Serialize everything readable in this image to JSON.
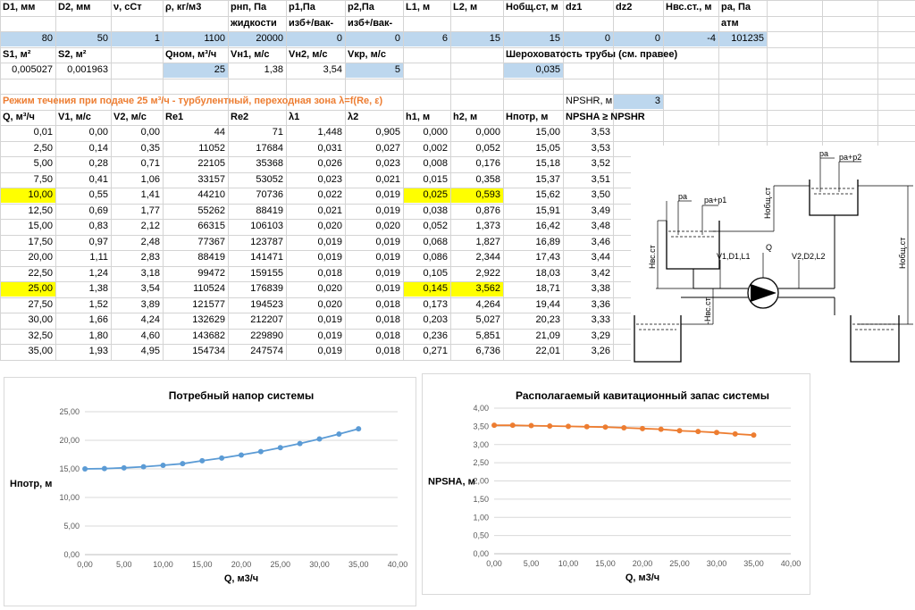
{
  "header_row1": [
    {
      "col": 0,
      "text": "D1, мм"
    },
    {
      "col": 1,
      "text": "D2, мм"
    },
    {
      "col": 2,
      "text": "ν, сСт"
    },
    {
      "col": 3,
      "text": "ρ, кг/м3"
    },
    {
      "col": 4,
      "text": "рнп, Па"
    },
    {
      "col": 5,
      "text": "р1,Па"
    },
    {
      "col": 6,
      "text": "р2,Па"
    },
    {
      "col": 7,
      "text": "L1, м"
    },
    {
      "col": 8,
      "text": "L2, м"
    },
    {
      "col": 9,
      "text": "Нобщ.ст, м"
    },
    {
      "col": 10,
      "text": "dz1"
    },
    {
      "col": 11,
      "text": "dz2"
    },
    {
      "col": 12,
      "text": "Нвс.ст., м"
    },
    {
      "col": 13,
      "text": "ра, Па"
    }
  ],
  "header_row2": [
    {
      "col": 4,
      "text": "жидкости"
    },
    {
      "col": 5,
      "text": "изб+/вак-"
    },
    {
      "col": 6,
      "text": "изб+/вак-"
    },
    {
      "col": 13,
      "text": "атм"
    }
  ],
  "input_values": [
    "80",
    "50",
    "1",
    "1100",
    "20000",
    "0",
    "0",
    "6",
    "15",
    "15",
    "0",
    "0",
    "-4",
    "101235"
  ],
  "row3": {
    "s1_label": "S1, м²",
    "s2_label": "S2, м²",
    "qnom_label": "Qном, м³/ч",
    "vn1_label": "Vн1, м/с",
    "vn2_label": "Vн2, м/с",
    "vkr_label": "Vкр, м/с",
    "roughness_label": "Шероховатость трубы (см. правее)"
  },
  "row4": {
    "s1": "0,005027",
    "s2": "0,001963",
    "qnom": "25",
    "vn1": "1,38",
    "vn2": "3,54",
    "vkr": "5",
    "roughness": "0,035"
  },
  "regime_text": "Режим течения при подаче 25 м³/ч - турбулентный, переходная зона  λ=f(Re, ε)",
  "npshr_label": "NPSHR, м",
  "npshr_value": "3",
  "table_headers": [
    "Q, м³/ч",
    "V1, м/с",
    "V2, м/с",
    "Re1",
    "Re2",
    "λ1",
    "λ2",
    "h1, м",
    "h2, м",
    "Нпотр, м",
    "NPSHA ≥ NPSHR"
  ],
  "table_rows": [
    [
      "0,01",
      "0,00",
      "0,00",
      "44",
      "71",
      "1,448",
      "0,905",
      "0,000",
      "0,000",
      "15,00",
      "3,53"
    ],
    [
      "2,50",
      "0,14",
      "0,35",
      "11052",
      "17684",
      "0,031",
      "0,027",
      "0,002",
      "0,052",
      "15,05",
      "3,53"
    ],
    [
      "5,00",
      "0,28",
      "0,71",
      "22105",
      "35368",
      "0,026",
      "0,023",
      "0,008",
      "0,176",
      "15,18",
      "3,52"
    ],
    [
      "7,50",
      "0,41",
      "1,06",
      "33157",
      "53052",
      "0,023",
      "0,021",
      "0,015",
      "0,358",
      "15,37",
      "3,51"
    ],
    [
      "10,00",
      "0,55",
      "1,41",
      "44210",
      "70736",
      "0,022",
      "0,019",
      "0,025",
      "0,593",
      "15,62",
      "3,50"
    ],
    [
      "12,50",
      "0,69",
      "1,77",
      "55262",
      "88419",
      "0,021",
      "0,019",
      "0,038",
      "0,876",
      "15,91",
      "3,49"
    ],
    [
      "15,00",
      "0,83",
      "2,12",
      "66315",
      "106103",
      "0,020",
      "0,020",
      "0,052",
      "1,373",
      "16,42",
      "3,48"
    ],
    [
      "17,50",
      "0,97",
      "2,48",
      "77367",
      "123787",
      "0,019",
      "0,019",
      "0,068",
      "1,827",
      "16,89",
      "3,46"
    ],
    [
      "20,00",
      "1,11",
      "2,83",
      "88419",
      "141471",
      "0,019",
      "0,019",
      "0,086",
      "2,344",
      "17,43",
      "3,44"
    ],
    [
      "22,50",
      "1,24",
      "3,18",
      "99472",
      "159155",
      "0,018",
      "0,019",
      "0,105",
      "2,922",
      "18,03",
      "3,42"
    ],
    [
      "25,00",
      "1,38",
      "3,54",
      "110524",
      "176839",
      "0,020",
      "0,019",
      "0,145",
      "3,562",
      "18,71",
      "3,38"
    ],
    [
      "27,50",
      "1,52",
      "3,89",
      "121577",
      "194523",
      "0,020",
      "0,018",
      "0,173",
      "4,264",
      "19,44",
      "3,36"
    ],
    [
      "30,00",
      "1,66",
      "4,24",
      "132629",
      "212207",
      "0,019",
      "0,018",
      "0,203",
      "5,027",
      "20,23",
      "3,33"
    ],
    [
      "32,50",
      "1,80",
      "4,60",
      "143682",
      "229890",
      "0,019",
      "0,018",
      "0,236",
      "5,851",
      "21,09",
      "3,29"
    ],
    [
      "35,00",
      "1,93",
      "4,95",
      "154734",
      "247574",
      "0,019",
      "0,018",
      "0,271",
      "6,736",
      "22,01",
      "3,26"
    ]
  ],
  "highlight_rows": [
    4,
    10
  ],
  "colors": {
    "input_fill": "#bdd7ee",
    "highlight": "#ffff00",
    "orange": "#ed7d31",
    "blue_series": "#5b9bd5",
    "grid": "#d4d4d4"
  },
  "schematic_labels": {
    "pa1": "pa",
    "pa_p1": "pa+p1",
    "pa2": "pa",
    "pa_p2": "pa+p2",
    "hobsh_small": "Hобщ.ст",
    "hobsh_big": "Hобщ.ст",
    "hvs": "Hвс.ст",
    "hvs_neg": "-Hвс.ст",
    "q": "Q",
    "left_pipe": "V1,D1,L1",
    "right_pipe": "V2,D2,L2"
  },
  "chart_data": [
    {
      "type": "line",
      "title": "Потребный напор системы",
      "xlabel": "Q, м3/ч",
      "ylabel": "Нпотр, м",
      "xlim": [
        0,
        40
      ],
      "ylim": [
        0,
        25
      ],
      "xticks": [
        "0,00",
        "5,00",
        "10,00",
        "15,00",
        "20,00",
        "25,00",
        "30,00",
        "35,00",
        "40,00"
      ],
      "yticks": [
        "0,00",
        "5,00",
        "10,00",
        "15,00",
        "20,00",
        "25,00"
      ],
      "grid": true,
      "color": "#5b9bd5",
      "x": [
        0.01,
        2.5,
        5,
        7.5,
        10,
        12.5,
        15,
        17.5,
        20,
        22.5,
        25,
        27.5,
        30,
        32.5,
        35
      ],
      "y": [
        15.0,
        15.05,
        15.18,
        15.37,
        15.62,
        15.91,
        16.42,
        16.89,
        17.43,
        18.03,
        18.71,
        19.44,
        20.23,
        21.09,
        22.01
      ]
    },
    {
      "type": "line",
      "title": "Располагаемый кавитационный запас системы",
      "xlabel": "Q, м3/ч",
      "ylabel": "NPSHA, м",
      "xlim": [
        0,
        40
      ],
      "ylim": [
        0,
        4
      ],
      "xticks": [
        "0,00",
        "5,00",
        "10,00",
        "15,00",
        "20,00",
        "25,00",
        "30,00",
        "35,00",
        "40,00"
      ],
      "yticks": [
        "0,00",
        "0,50",
        "1,00",
        "1,50",
        "2,00",
        "2,50",
        "3,00",
        "3,50",
        "4,00"
      ],
      "grid": true,
      "color": "#ed7d31",
      "x": [
        0.01,
        2.5,
        5,
        7.5,
        10,
        12.5,
        15,
        17.5,
        20,
        22.5,
        25,
        27.5,
        30,
        32.5,
        35
      ],
      "y": [
        3.53,
        3.53,
        3.52,
        3.51,
        3.5,
        3.49,
        3.48,
        3.46,
        3.44,
        3.42,
        3.38,
        3.36,
        3.33,
        3.29,
        3.26
      ]
    }
  ]
}
